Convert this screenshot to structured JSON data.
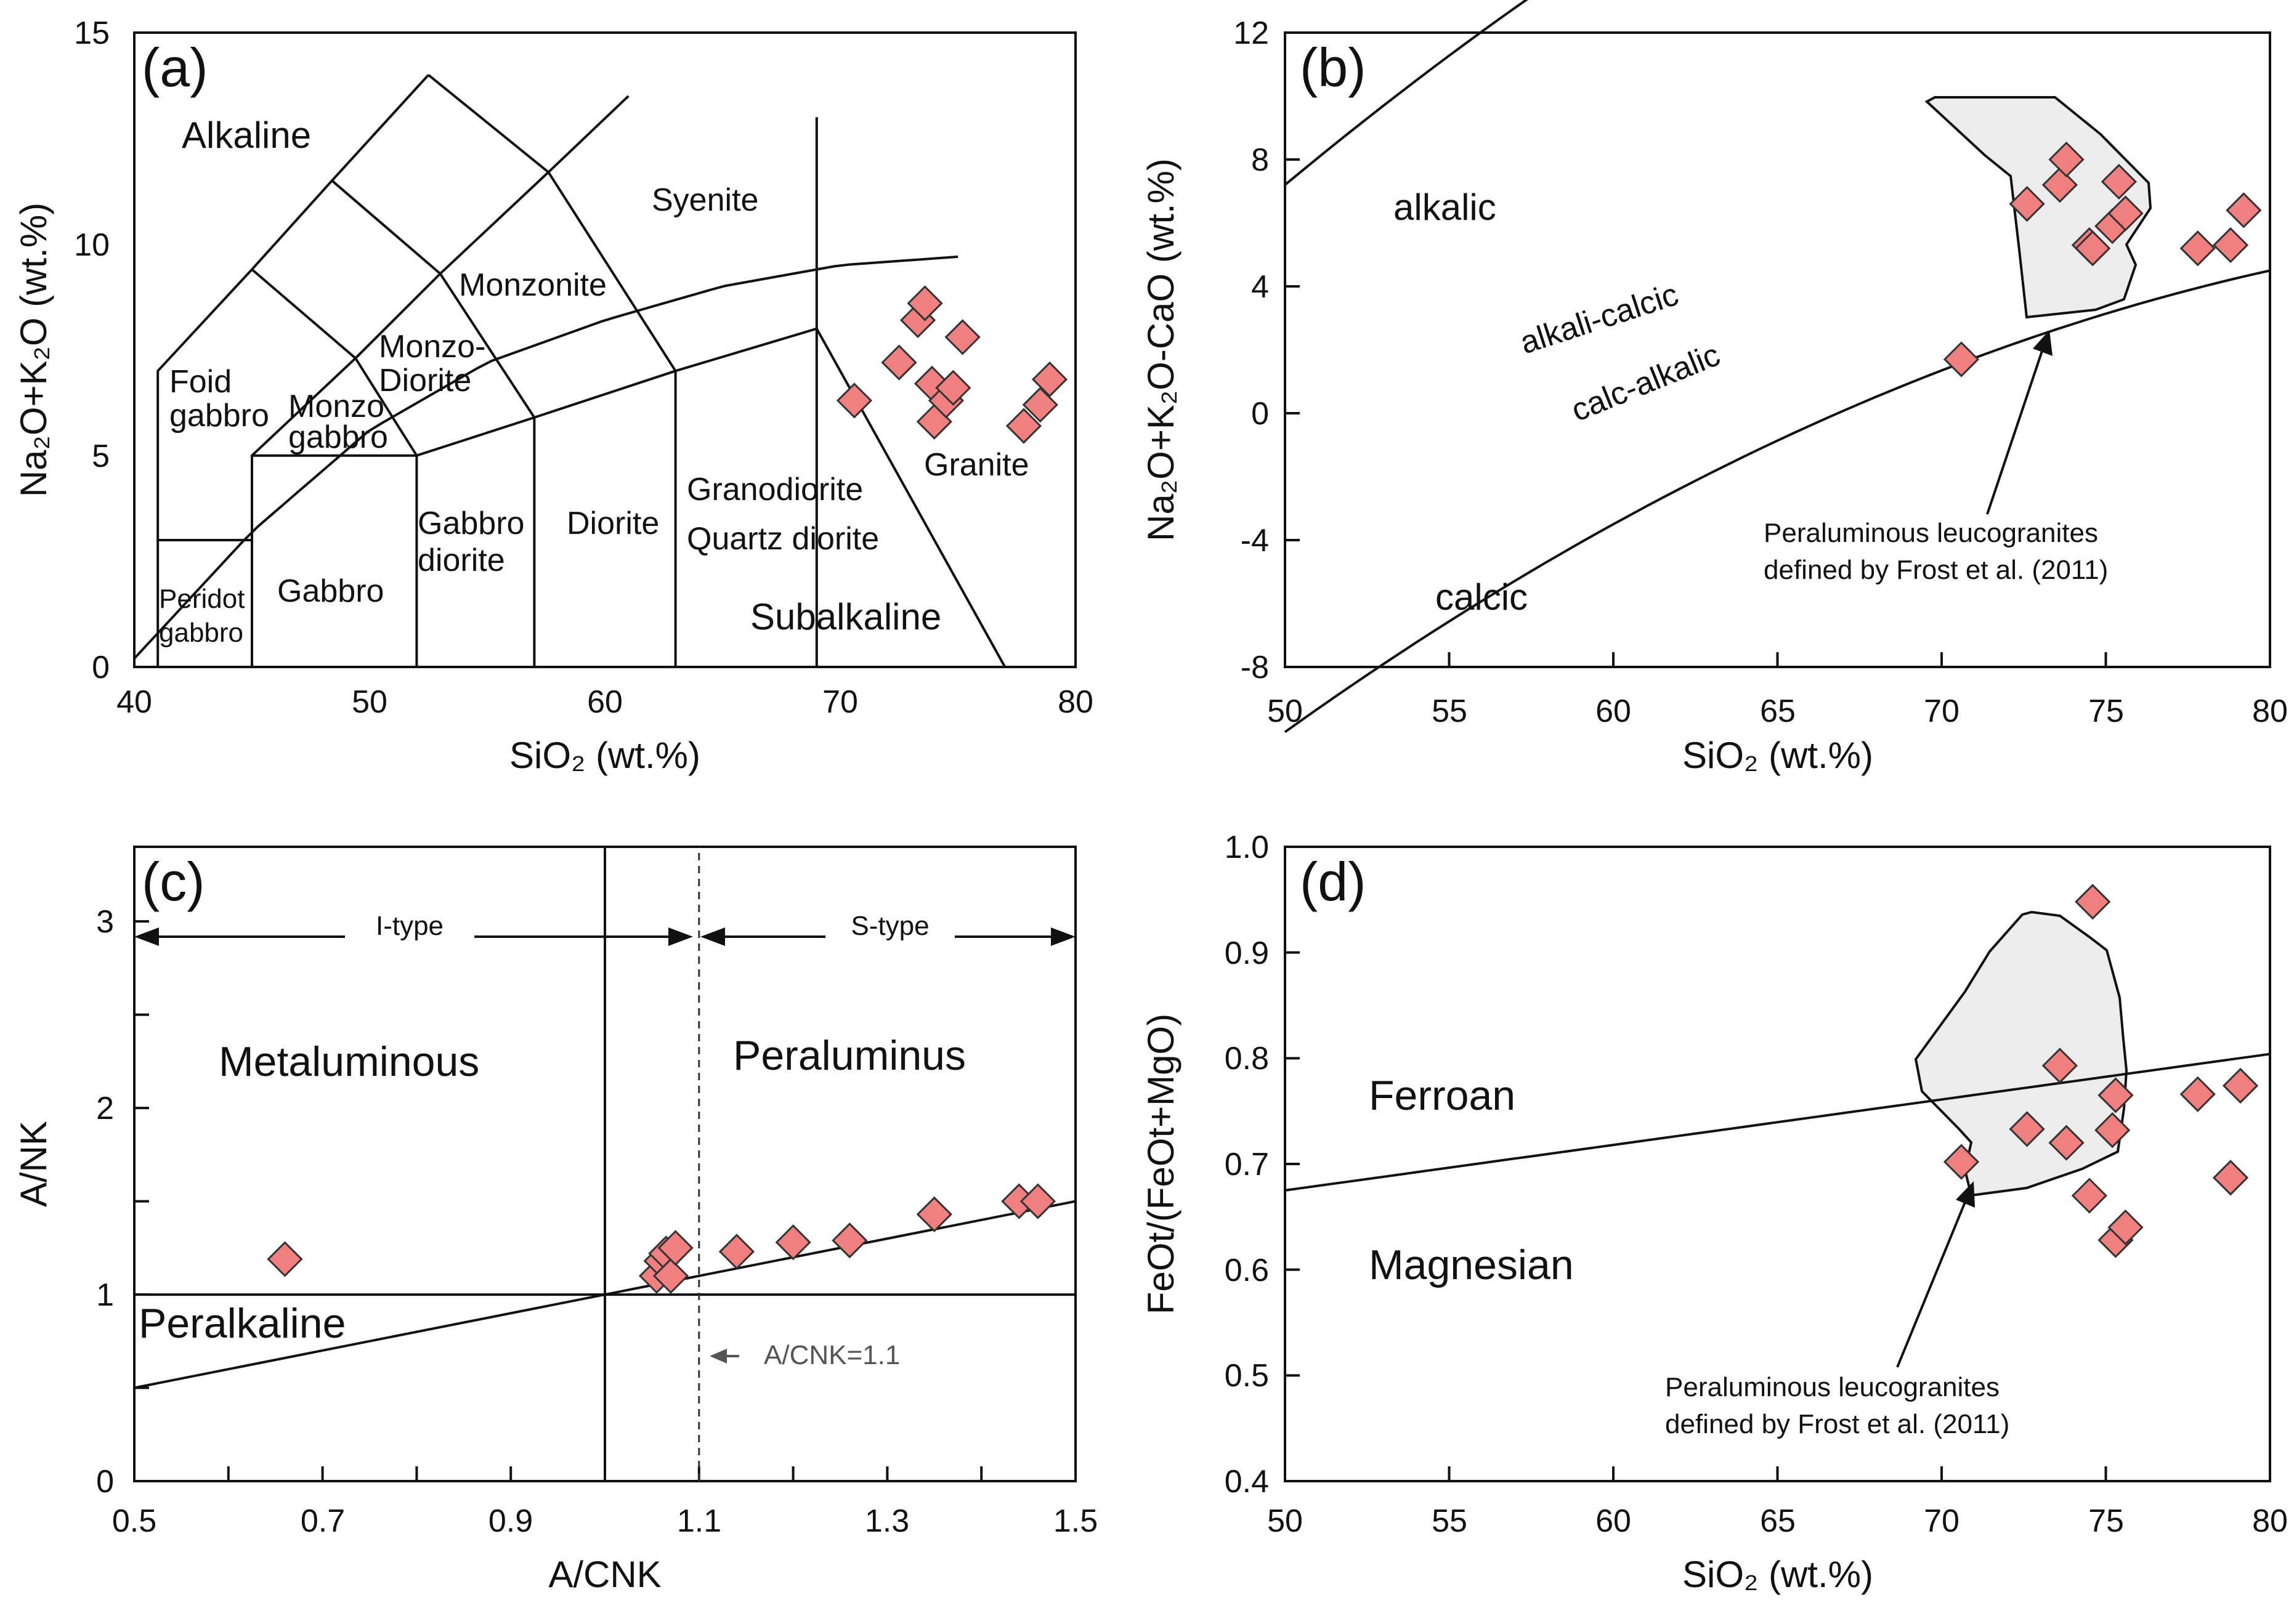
{
  "marker_color": "#f08080",
  "field_fill": "#ececec",
  "chart_data": [
    {
      "type": "scatter",
      "panel_label": "(a)",
      "xlabel": "SiO₂ (wt.%)",
      "ylabel": "Na₂O+K₂O (wt.%)",
      "xlim": [
        40,
        80
      ],
      "ylim": [
        0,
        15
      ],
      "x_ticks": [
        "40",
        "50",
        "60",
        "70",
        "80"
      ],
      "y_ticks": [
        "0",
        "5",
        "10",
        "15"
      ],
      "field_labels": [
        "Alkaline",
        "Syenite",
        "Monzonite",
        "Monzo-",
        "Diorite",
        "Foid",
        "gabbro",
        "Monzo",
        "gabbro",
        "Gabbro",
        "diorite",
        "Diorite",
        "Granodiorite",
        "Quartz diorite",
        "Granite",
        "Peridot",
        "gabbro",
        "Gabbro",
        "Subalkaline"
      ],
      "series": [
        {
          "points": [
            [
              70.6,
              6.3
            ],
            [
              72.5,
              7.2
            ],
            [
              73.3,
              8.2
            ],
            [
              73.6,
              8.6
            ],
            [
              73.9,
              6.7
            ],
            [
              74.0,
              5.8
            ],
            [
              74.5,
              6.3
            ],
            [
              74.8,
              6.6
            ],
            [
              75.2,
              7.8
            ],
            [
              77.8,
              5.7
            ],
            [
              78.5,
              6.2
            ],
            [
              78.9,
              6.8
            ]
          ]
        }
      ]
    },
    {
      "type": "scatter",
      "panel_label": "(b)",
      "xlabel": "SiO₂ (wt.%)",
      "ylabel": "Na₂O+K₂O-CaO (wt.%)",
      "xlim": [
        50,
        80
      ],
      "ylim": [
        -8,
        12
      ],
      "x_ticks": [
        "50",
        "55",
        "60",
        "65",
        "70",
        "75",
        "80"
      ],
      "y_ticks": [
        "-8",
        "-4",
        "0",
        "4",
        "8",
        "12"
      ],
      "field_labels": [
        "alkalic",
        "alkali-calcic",
        "calc-alkalic",
        "calcic"
      ],
      "annotation": [
        "Peraluminous leucogranites",
        "defined by Frost et al. (2011)"
      ],
      "series": [
        {
          "points": [
            [
              70.6,
              1.7
            ],
            [
              72.6,
              6.6
            ],
            [
              73.6,
              7.2
            ],
            [
              73.8,
              8.0
            ],
            [
              74.5,
              5.3
            ],
            [
              74.6,
              5.2
            ],
            [
              75.2,
              5.9
            ],
            [
              75.4,
              7.3
            ],
            [
              75.6,
              6.3
            ],
            [
              77.8,
              5.2
            ],
            [
              78.8,
              5.3
            ],
            [
              79.2,
              6.4
            ]
          ]
        }
      ]
    },
    {
      "type": "scatter",
      "panel_label": "(c)",
      "xlabel": "A/CNK",
      "ylabel": "A/NK",
      "xlim": [
        0.5,
        1.5
      ],
      "ylim": [
        0,
        3.4
      ],
      "x_ticks": [
        "0.5",
        "0.7",
        "0.9",
        "1.1",
        "1.3",
        "1.5"
      ],
      "y_ticks": [
        "0",
        "1",
        "2",
        "3"
      ],
      "field_labels": [
        "I-type",
        "S-type",
        "Metaluminous",
        "Peraluminus",
        "Peralkaline"
      ],
      "threshold_label": "A/CNK=1.1",
      "series": [
        {
          "points": [
            [
              0.66,
              1.19
            ],
            [
              1.055,
              1.1
            ],
            [
              1.06,
              1.18
            ],
            [
              1.065,
              1.22
            ],
            [
              1.07,
              1.1
            ],
            [
              1.075,
              1.25
            ],
            [
              1.14,
              1.23
            ],
            [
              1.2,
              1.28
            ],
            [
              1.26,
              1.29
            ],
            [
              1.35,
              1.43
            ],
            [
              1.44,
              1.5
            ],
            [
              1.46,
              1.5
            ]
          ]
        }
      ]
    },
    {
      "type": "scatter",
      "panel_label": "(d)",
      "xlabel": "SiO₂ (wt.%)",
      "ylabel": "FeOt/(FeOt+MgO)",
      "xlim": [
        50,
        80
      ],
      "ylim": [
        0.4,
        1.0
      ],
      "x_ticks": [
        "50",
        "55",
        "60",
        "65",
        "70",
        "75",
        "80"
      ],
      "y_ticks": [
        "0.4",
        "0.5",
        "0.6",
        "0.7",
        "0.8",
        "0.9",
        "1.0"
      ],
      "field_labels": [
        "Ferroan",
        "Magnesian"
      ],
      "annotation": [
        "Peraluminous leucogranites",
        "defined by Frost et al. (2011)"
      ],
      "series": [
        {
          "points": [
            [
              70.6,
              0.702
            ],
            [
              72.6,
              0.733
            ],
            [
              73.6,
              0.793
            ],
            [
              73.8,
              0.72
            ],
            [
              74.5,
              0.67
            ],
            [
              74.6,
              0.948
            ],
            [
              75.2,
              0.732
            ],
            [
              75.3,
              0.765
            ],
            [
              75.3,
              0.628
            ],
            [
              75.6,
              0.64
            ],
            [
              77.8,
              0.766
            ],
            [
              78.8,
              0.687
            ],
            [
              79.1,
              0.774
            ]
          ]
        }
      ]
    }
  ]
}
